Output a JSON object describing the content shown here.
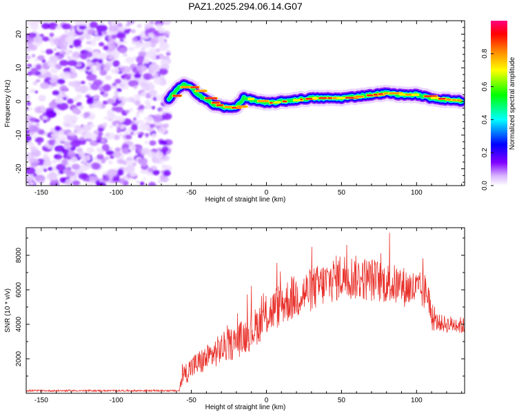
{
  "figure": {
    "title": "PAZ1.2025.294.06.14.G07"
  },
  "chart_data": [
    {
      "type": "heatmap",
      "title": "PAZ1.2025.294.06.14.G07",
      "xlabel": "Height of straight line (km)",
      "ylabel": "Frequency (Hz)",
      "xlim": [
        -160,
        132
      ],
      "ylim": [
        -25,
        24
      ],
      "xticks": [
        -150,
        -100,
        -50,
        0,
        50,
        100
      ],
      "yticks": [
        -20,
        -10,
        0,
        10,
        20
      ],
      "noise_region_x": [
        -160,
        -65
      ],
      "ridge_x": [
        -65,
        -60,
        -55,
        -50,
        -45,
        -40,
        -35,
        -30,
        -25,
        -20,
        -15,
        -10,
        -5,
        0,
        10,
        20,
        30,
        40,
        50,
        60,
        70,
        80,
        90,
        100,
        110,
        120,
        130
      ],
      "ridge_frequency": [
        0.5,
        3.5,
        5,
        4,
        2,
        0.5,
        -1,
        -1.5,
        -2,
        -1.5,
        1,
        0.5,
        0,
        -0.5,
        0,
        0.5,
        1,
        1,
        1,
        1.5,
        2,
        2.5,
        2,
        2,
        1,
        0.5,
        0.2
      ],
      "colorbar": {
        "label": "Normalized spectral amplitude",
        "range": [
          0,
          1
        ],
        "ticks": [
          0.0,
          0.2,
          0.4,
          0.6,
          0.8
        ],
        "tick_labels": [
          "0.0",
          "0.2",
          "0.4",
          "0.6",
          "0.8"
        ],
        "colors": [
          "#ffffff",
          "#8000ff",
          "#0000ff",
          "#00ffff",
          "#00ff00",
          "#ffff00",
          "#ff8000",
          "#ff0000",
          "#ff0080"
        ]
      }
    },
    {
      "type": "line",
      "xlabel": "Height of straight line (km)",
      "ylabel": "SNR (10 * v/v)",
      "xlim": [
        -160,
        132
      ],
      "ylim": [
        0,
        9600
      ],
      "xticks": [
        -150,
        -100,
        -50,
        0,
        50,
        100
      ],
      "yticks": [
        2000,
        4000,
        6000,
        8000
      ],
      "color": "#e8302a",
      "series_envelope": {
        "x": [
          -160,
          -100,
          -58,
          -56,
          -50,
          -40,
          -30,
          -20,
          -10,
          0,
          10,
          20,
          30,
          40,
          50,
          60,
          70,
          80,
          90,
          100,
          108,
          110,
          115,
          120,
          125,
          132
        ],
        "mean": [
          150,
          150,
          150,
          1000,
          1500,
          2000,
          2600,
          3000,
          3600,
          4500,
          5200,
          5600,
          6000,
          6400,
          6800,
          6700,
          6600,
          6400,
          6200,
          6000,
          5800,
          4200,
          4100,
          4000,
          4000,
          3900
        ],
        "spread": [
          50,
          50,
          50,
          600,
          700,
          800,
          900,
          1000,
          1100,
          1200,
          1300,
          1300,
          1300,
          1300,
          1400,
          1300,
          1300,
          1200,
          1200,
          1100,
          1100,
          600,
          500,
          500,
          500,
          500
        ]
      }
    }
  ]
}
